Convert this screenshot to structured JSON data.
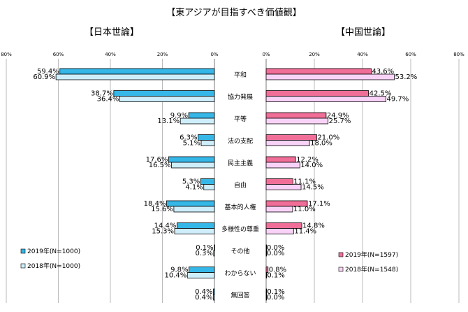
{
  "chart_data": {
    "type": "bar",
    "title": "【東アジアが目指すべき価値観】",
    "categories": [
      "平和",
      "協力発展",
      "平等",
      "法の支配",
      "民主主義",
      "自由",
      "基本的人権",
      "多様性の尊重",
      "その他",
      "わからない",
      "無回答"
    ],
    "axis_ticks": [
      "80%",
      "60%",
      "40%",
      "20%",
      "0%"
    ],
    "axis_ticks_right": [
      "0%",
      "20%",
      "40%",
      "60%",
      "80%"
    ],
    "xlim": [
      0,
      80
    ],
    "panels": [
      {
        "title": "【日本世論】",
        "direction": "left",
        "series": [
          {
            "name": "2019年(N=1000)",
            "color": "#35b7e8",
            "values": [
              59.4,
              38.7,
              9.9,
              6.3,
              17.6,
              5.3,
              18.4,
              14.4,
              0.1,
              9.8,
              0.4
            ],
            "labels": [
              "59.4%",
              "38.7%",
              "9.9%",
              "6.3%",
              "17.6%",
              "5.3%",
              "18.4%",
              "14.4%",
              "0.1%",
              "9.8%",
              "0.4%"
            ]
          },
          {
            "name": "2018年(N=1000)",
            "color": "#cdeefa",
            "values": [
              60.9,
              36.4,
              13.1,
              5.1,
              16.5,
              4.1,
              15.6,
              15.3,
              0.3,
              10.4,
              0.4
            ],
            "labels": [
              "60.9%",
              "36.4%",
              "13.1%",
              "5.1%",
              "16.5%",
              "4.1%",
              "15.6%",
              "15.3%",
              "0.3%",
              "10.4%",
              "0.4%"
            ]
          }
        ]
      },
      {
        "title": "【中国世論】",
        "direction": "right",
        "series": [
          {
            "name": "2019年(N=1597)",
            "color": "#f06e98",
            "values": [
              43.6,
              42.5,
              24.9,
              21.0,
              12.2,
              11.1,
              17.1,
              14.8,
              0.0,
              0.8,
              0.1
            ],
            "labels": [
              "43.6%",
              "42.5%",
              "24.9%",
              "21.0%",
              "12.2%",
              "11.1%",
              "17.1%",
              "14.8%",
              "0.0%",
              "0.8%",
              "0.1%"
            ]
          },
          {
            "name": "2018年(N=1548)",
            "color": "#f9d3f7",
            "values": [
              53.2,
              49.7,
              25.7,
              18.0,
              14.0,
              14.5,
              11.0,
              11.4,
              0.0,
              0.1,
              0.0
            ],
            "labels": [
              "53.2%",
              "49.7%",
              "25.7%",
              "18.0%",
              "14.0%",
              "14.5%",
              "11.0%",
              "11.4%",
              "0.0%",
              "0.1%",
              "0.0%"
            ]
          }
        ]
      }
    ]
  }
}
